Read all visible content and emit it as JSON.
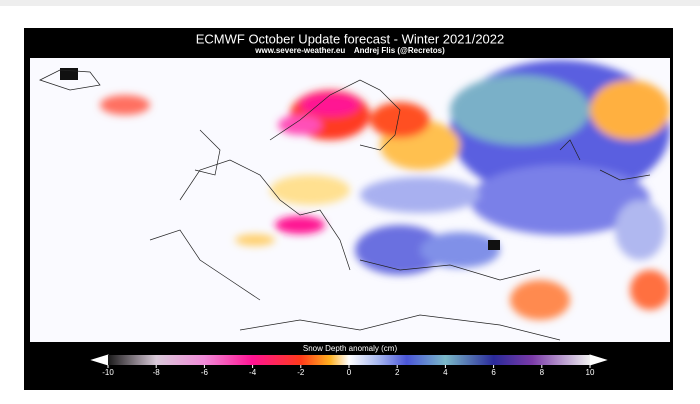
{
  "header": {
    "title": "ECMWF October Update forecast - Winter 2021/2022",
    "subtitle": "www.severe-weather.eu    Andrej Flis (@Recretos)"
  },
  "colorbar": {
    "label": "Snow Depth anomaly (cm)",
    "lim": [
      -10,
      10
    ],
    "ticks": [
      -10,
      -8,
      -6,
      -4,
      -2,
      0,
      2,
      4,
      6,
      8,
      10
    ]
  }
}
